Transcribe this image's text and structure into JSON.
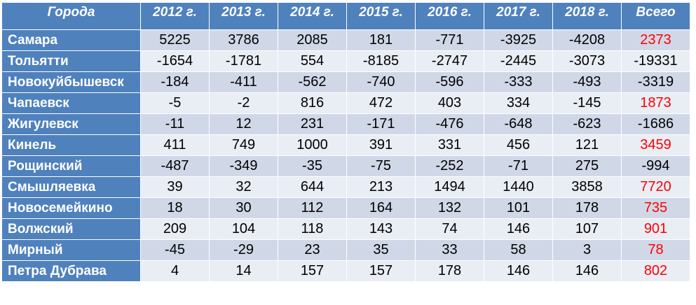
{
  "table": {
    "headers": [
      "Города",
      "2012 г.",
      "2013 г.",
      "2014 г.",
      "2015 г.",
      "2016 г.",
      "2017 г.",
      "2018 г.",
      "Всего"
    ],
    "rows": [
      {
        "city": "Самара",
        "values": [
          "5225",
          "3786",
          "2085",
          "181",
          "-771",
          "-3925",
          "-4208"
        ],
        "total": "2373",
        "total_positive": true
      },
      {
        "city": "Тольятти",
        "values": [
          "-1654",
          "-1781",
          "554",
          "-8185",
          "-2747",
          "-2445",
          "-3073"
        ],
        "total": "-19331",
        "total_positive": false
      },
      {
        "city": "Новокуйбышевск",
        "values": [
          "-184",
          "-411",
          "-562",
          "-740",
          "-596",
          "-333",
          "-493"
        ],
        "total": "-3319",
        "total_positive": false
      },
      {
        "city": "Чапаевск",
        "values": [
          "-5",
          "-2",
          "816",
          "472",
          "403",
          "334",
          "-145"
        ],
        "total": "1873",
        "total_positive": true
      },
      {
        "city": "Жигулевск",
        "values": [
          "-11",
          "12",
          "231",
          "-171",
          "-476",
          "-648",
          "-623"
        ],
        "total": "-1686",
        "total_positive": false
      },
      {
        "city": "Кинель",
        "values": [
          "411",
          "749",
          "1000",
          "391",
          "331",
          "456",
          "121"
        ],
        "total": "3459",
        "total_positive": true
      },
      {
        "city": "Рощинский",
        "values": [
          "-487",
          "-349",
          "-35",
          "-75",
          "-252",
          "-71",
          "275"
        ],
        "total": "-994",
        "total_positive": false
      },
      {
        "city": "Смышляевка",
        "values": [
          "39",
          "32",
          "644",
          "213",
          "1494",
          "1440",
          "3858"
        ],
        "total": "7720",
        "total_positive": true
      },
      {
        "city": "Новосемейкино",
        "values": [
          "18",
          "30",
          "112",
          "164",
          "132",
          "101",
          "178"
        ],
        "total": "735",
        "total_positive": true
      },
      {
        "city": "Волжский",
        "values": [
          "209",
          "104",
          "118",
          "143",
          "74",
          "146",
          "107"
        ],
        "total": "901",
        "total_positive": true
      },
      {
        "city": "Мирный",
        "values": [
          "-45",
          "-29",
          "23",
          "35",
          "33",
          "58",
          "3"
        ],
        "total": "78",
        "total_positive": true
      },
      {
        "city": "Петра Дубрава",
        "values": [
          "4",
          "14",
          "157",
          "157",
          "178",
          "146",
          "146"
        ],
        "total": "802",
        "total_positive": true
      }
    ]
  },
  "colors": {
    "header_bg": "#4f81bd",
    "row_odd": "#d0d8e8",
    "row_even": "#e9edf4",
    "positive_total": "#ff0000"
  }
}
